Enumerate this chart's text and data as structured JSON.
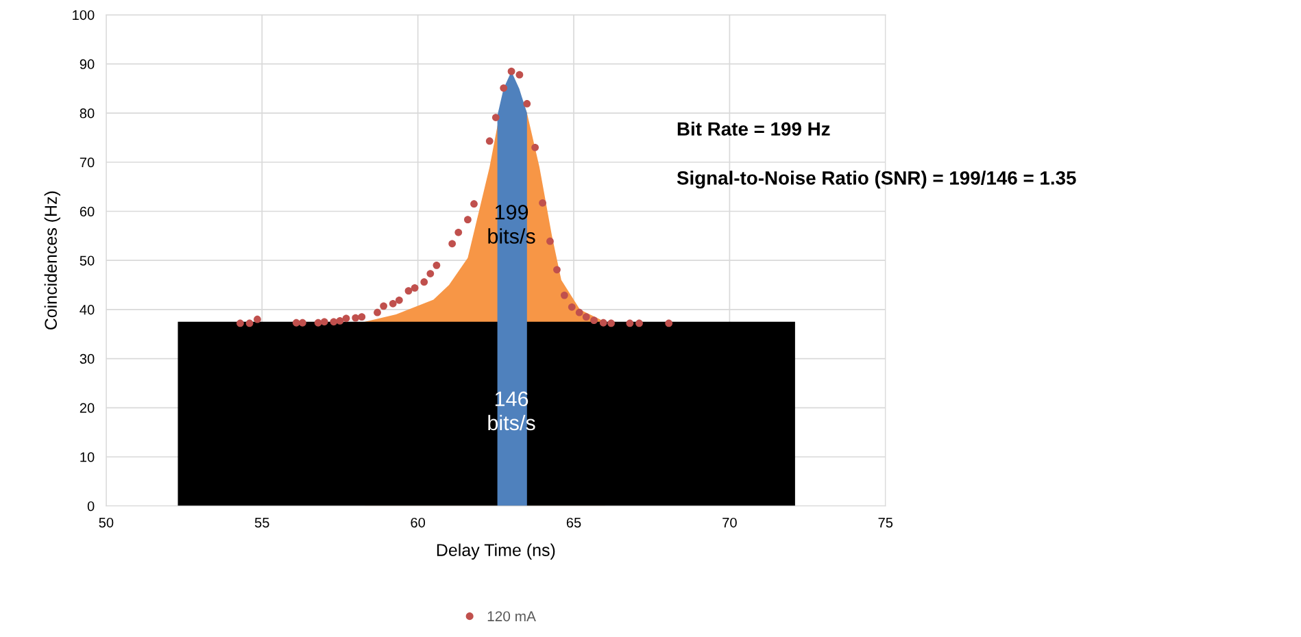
{
  "chart_data": {
    "type": "scatter",
    "xlabel": "Delay Time (ns)",
    "ylabel": "Coincidences (Hz)",
    "xlim": [
      50,
      75
    ],
    "xticks": [
      50,
      55,
      60,
      65,
      70,
      75
    ],
    "ylim": [
      0,
      100
    ],
    "yticks": [
      0,
      10,
      20,
      30,
      40,
      50,
      60,
      70,
      80,
      90,
      100
    ],
    "grid": true,
    "legend": "bottom",
    "series": [
      {
        "type": "area",
        "color": "#f79646",
        "x": [
          58.3,
          59.3,
          60.5,
          61.0,
          61.6,
          62.3,
          62.6,
          63.0,
          63.5,
          63.9,
          64.3,
          64.6,
          65.2,
          66.0
        ],
        "values": [
          37.5,
          39.0,
          42.0,
          45.0,
          50.5,
          69.0,
          79.0,
          88.5,
          80.0,
          69.0,
          55.0,
          46.0,
          40.0,
          37.5
        ]
      },
      {
        "type": "area",
        "color": "#000000",
        "x": [
          52.3,
          72.1
        ],
        "values": [
          37.5,
          37.5
        ]
      },
      {
        "type": "area",
        "color": "#4f81bd",
        "x": [
          62.55,
          62.75,
          63.0,
          63.25,
          63.5
        ],
        "values": [
          79.5,
          85.0,
          88.5,
          85.0,
          80.0
        ]
      },
      {
        "name": "120 mA",
        "color": "#c0504d",
        "marker": "circle",
        "x": [
          54.3,
          54.6,
          54.85,
          56.1,
          56.3,
          56.8,
          57.0,
          57.3,
          57.5,
          57.7,
          58.0,
          58.2,
          58.7,
          58.9,
          59.2,
          59.4,
          59.7,
          59.9,
          60.2,
          60.4,
          60.6,
          61.1,
          61.3,
          61.6,
          61.8,
          62.3,
          62.5,
          62.75,
          63.0,
          63.26,
          63.5,
          63.76,
          64.0,
          64.24,
          64.46,
          64.7,
          64.94,
          65.18,
          65.4,
          65.65,
          65.95,
          66.2,
          66.8,
          67.1,
          68.05
        ],
        "values": [
          37.2,
          37.2,
          38.0,
          37.3,
          37.3,
          37.3,
          37.5,
          37.5,
          37.7,
          38.2,
          38.3,
          38.5,
          39.4,
          40.7,
          41.2,
          41.9,
          43.8,
          44.4,
          45.6,
          47.3,
          49.0,
          53.4,
          55.7,
          58.3,
          61.5,
          74.3,
          79.1,
          85.1,
          88.5,
          87.8,
          81.9,
          73.0,
          61.7,
          53.9,
          48.1,
          42.9,
          40.5,
          39.4,
          38.5,
          37.8,
          37.3,
          37.2,
          37.2,
          37.2,
          37.2
        ]
      }
    ],
    "annotations": [
      "199\nbits/s",
      "146\nbits/s",
      "Bit Rate = 199 Hz",
      "Signal-to-Noise Ratio (SNR) = 199/146 = 1.35"
    ]
  }
}
